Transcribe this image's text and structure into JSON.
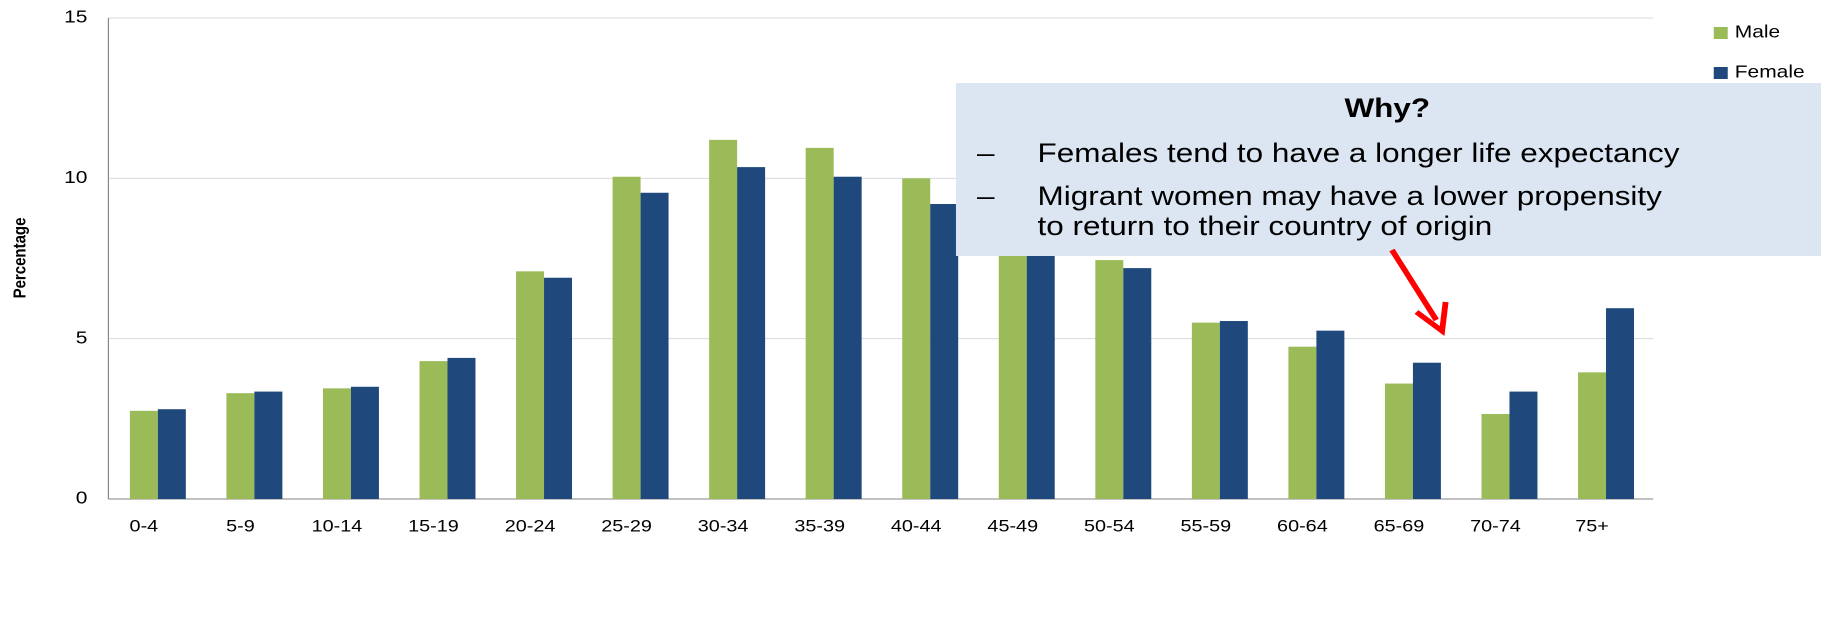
{
  "chart_data": {
    "type": "bar",
    "y_label": "Percentage",
    "categories": [
      "0-4",
      "5-9",
      "10-14",
      "15-19",
      "20-24",
      "25-29",
      "30-34",
      "35-39",
      "40-44",
      "45-49",
      "50-54",
      "55-59",
      "60-64",
      "65-69",
      "70-74",
      "75+"
    ],
    "series": [
      {
        "name": "Male",
        "color": "#9bbb59",
        "values": [
          2.75,
          3.3,
          3.45,
          4.3,
          7.1,
          10.05,
          11.2,
          10.95,
          10.0,
          8.6,
          7.45,
          5.5,
          4.75,
          3.6,
          2.65,
          3.95
        ]
      },
      {
        "name": "Female",
        "color": "#1f497d",
        "values": [
          2.8,
          3.35,
          3.5,
          4.4,
          6.9,
          9.55,
          10.35,
          10.05,
          9.2,
          8.4,
          7.2,
          5.55,
          5.25,
          4.25,
          3.35,
          5.95
        ]
      }
    ],
    "ylim": [
      0,
      15
    ],
    "yticks": [
      0,
      5,
      10,
      15
    ],
    "grid": true,
    "legend": "top-right",
    "annotation": {
      "title": "Why?",
      "marker": "–",
      "bullets": [
        [
          "Females tend to have a longer life expectancy"
        ],
        [
          "Migrant women may have a lower propensity",
          "to return to their country of origin"
        ]
      ]
    }
  }
}
